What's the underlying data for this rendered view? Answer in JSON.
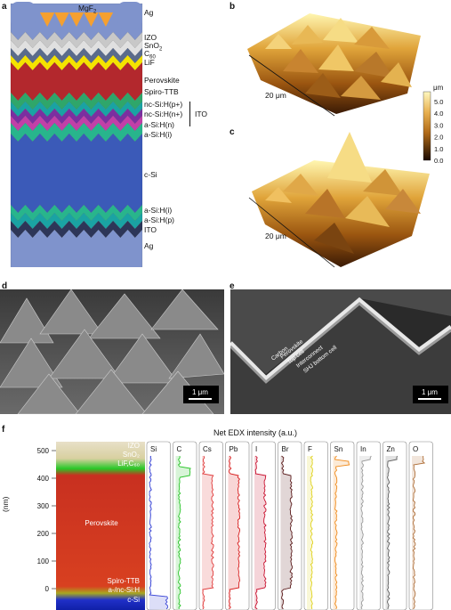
{
  "panels": {
    "a": "a",
    "b": "b",
    "c": "c",
    "d": "d",
    "e": "e",
    "f": "f"
  },
  "stack": {
    "top_label": "MgF",
    "top_label_sub": "2",
    "layers": [
      {
        "text": "Ag",
        "color": "#7f93cc"
      },
      {
        "text": "IZO",
        "color": "#c8c8c8"
      },
      {
        "text": "SnO",
        "sub": "2",
        "color": "#e0e0e0"
      },
      {
        "text": "C",
        "sub": "60",
        "color": "#5a6b8c"
      },
      {
        "text": "LiF",
        "color": "#f5e300"
      },
      {
        "text": "Perovskite",
        "color": "#b3282d"
      },
      {
        "text": "Spiro-TTB",
        "color": "#2fa66a"
      },
      {
        "text": "nc-Si:H(p+)",
        "color": "#1aa3a3"
      },
      {
        "text": "nc-Si:H(n+)",
        "color": "#7b2fa0"
      },
      {
        "text": "a-Si:H(n)",
        "color": "#c23fa8"
      },
      {
        "text": "a-Si:H(i)",
        "color": "#28b58c"
      },
      {
        "text": "c-Si",
        "color": "#3b5ab8"
      },
      {
        "text": "a-Si:H(i)",
        "color": "#28b58c"
      },
      {
        "text": "a-Si:H(p)",
        "color": "#1aa3a3"
      },
      {
        "text": "ITO",
        "color": "#2d3658"
      },
      {
        "text": "Ag",
        "color": "#7f93cc"
      }
    ],
    "ito_bracket": "ITO"
  },
  "afm": {
    "scale_b": "20 μm",
    "scale_c": "20 μm",
    "colorbar_unit": "μm",
    "colorbar_ticks": [
      "5.0",
      "4.0",
      "3.0",
      "2.0",
      "1.0",
      "0.0"
    ]
  },
  "sem": {
    "scale_d": "1 μm",
    "scale_e": "1 μm",
    "e_labels": [
      "Carbon",
      "Perovskite",
      "Top cell",
      "Interconnect",
      "SHJ bottom cell"
    ]
  },
  "edx": {
    "title": "Net EDX intensity (a.u.)",
    "ylabel": "(nm)",
    "yticks": [
      "500",
      "400",
      "300",
      "200",
      "100",
      "0"
    ],
    "image_labels": [
      {
        "text": "IZO"
      },
      {
        "text": "SnO₂"
      },
      {
        "text": "LiF,C₆₀"
      },
      {
        "text": "Perovskite"
      },
      {
        "text": "Spiro-TTB"
      },
      {
        "text": "a-/nc-Si:H"
      },
      {
        "text": "c-Si"
      }
    ],
    "elements": [
      {
        "name": "Si",
        "color": "#3b47d6"
      },
      {
        "name": "C",
        "color": "#27c427"
      },
      {
        "name": "Cs",
        "color": "#e03a3a"
      },
      {
        "name": "Pb",
        "color": "#d81e1e"
      },
      {
        "name": "I",
        "color": "#c8102e"
      },
      {
        "name": "Br",
        "color": "#5a1a1a"
      },
      {
        "name": "F",
        "color": "#e0d21a"
      },
      {
        "name": "Sn",
        "color": "#f08a1a"
      },
      {
        "name": "In",
        "color": "#9a9a9a"
      },
      {
        "name": "Zn",
        "color": "#606060"
      },
      {
        "name": "O",
        "color": "#b0703a"
      }
    ]
  }
}
